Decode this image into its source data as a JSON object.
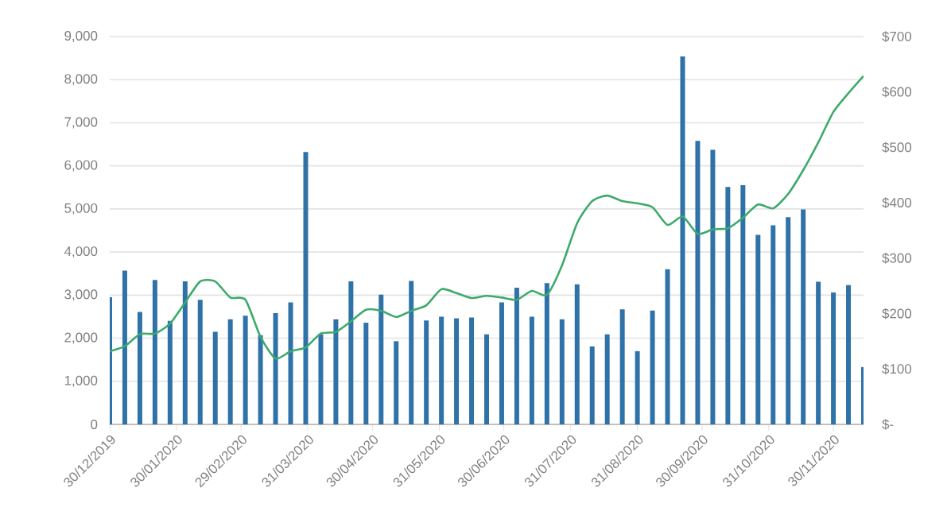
{
  "chart_data": {
    "type": "bar",
    "x": [
      "2019-12-30",
      "2020-01-06",
      "2020-01-13",
      "2020-01-20",
      "2020-01-27",
      "2020-02-03",
      "2020-02-10",
      "2020-02-17",
      "2020-02-24",
      "2020-03-02",
      "2020-03-09",
      "2020-03-16",
      "2020-03-23",
      "2020-03-30",
      "2020-04-06",
      "2020-04-13",
      "2020-04-20",
      "2020-04-27",
      "2020-05-04",
      "2020-05-11",
      "2020-05-18",
      "2020-05-25",
      "2020-06-01",
      "2020-06-08",
      "2020-06-15",
      "2020-06-22",
      "2020-06-29",
      "2020-07-06",
      "2020-07-13",
      "2020-07-20",
      "2020-07-27",
      "2020-08-03",
      "2020-08-10",
      "2020-08-17",
      "2020-08-24",
      "2020-08-31",
      "2020-09-07",
      "2020-09-14",
      "2020-09-21",
      "2020-09-28",
      "2020-10-05",
      "2020-10-12",
      "2020-10-19",
      "2020-10-26",
      "2020-11-02",
      "2020-11-09",
      "2020-11-16",
      "2020-11-23",
      "2020-11-30",
      "2020-12-07",
      "2020-12-14"
    ],
    "series": [
      {
        "color": "#2f72a8",
        "values": [
          2950,
          3570,
          2610,
          3350,
          2400,
          3320,
          2890,
          2150,
          2440,
          2520,
          2070,
          2580,
          2830,
          6320,
          2090,
          2440,
          3320,
          2360,
          3010,
          1930,
          3330,
          2410,
          2500,
          2460,
          2480,
          2090,
          2830,
          3170,
          2500,
          3280,
          2440,
          3250,
          1810,
          2090,
          2670,
          1700,
          2640,
          3600,
          8540,
          6580,
          6370,
          5510,
          5550,
          4400,
          4620,
          4810,
          4990,
          3310,
          3060,
          3230,
          1330
        ]
      },
      {
        "type": "line",
        "axis": "y2",
        "color": "#3daa6b",
        "values": [
          132,
          141,
          163,
          164,
          182,
          220,
          258,
          258,
          229,
          225,
          158,
          119,
          132,
          139,
          164,
          167,
          186,
          207,
          205,
          194,
          205,
          215,
          244,
          237,
          228,
          232,
          229,
          225,
          241,
          234,
          287,
          363,
          403,
          413,
          403,
          399,
          392,
          360,
          375,
          344,
          352,
          354,
          373,
          397,
          390,
          416,
          459,
          509,
          564,
          598,
          629
        ]
      }
    ],
    "xlim": [
      "2019-12-30",
      "2020-12-14"
    ],
    "xticks": [
      {
        "value": "2019-12-30",
        "label": "30/12/2019"
      },
      {
        "value": "2020-01-30",
        "label": "30/01/2020"
      },
      {
        "value": "2020-02-29",
        "label": "29/02/2020"
      },
      {
        "value": "2020-03-31",
        "label": "31/03/2020"
      },
      {
        "value": "2020-04-30",
        "label": "30/04/2020"
      },
      {
        "value": "2020-05-31",
        "label": "31/05/2020"
      },
      {
        "value": "2020-06-30",
        "label": "30/06/2020"
      },
      {
        "value": "2020-07-31",
        "label": "31/07/2020"
      },
      {
        "value": "2020-08-31",
        "label": "31/08/2020"
      },
      {
        "value": "2020-09-30",
        "label": "30/09/2020"
      },
      {
        "value": "2020-10-31",
        "label": "31/10/2020"
      },
      {
        "value": "2020-11-30",
        "label": "30/11/2020"
      }
    ],
    "ylim": [
      0,
      9000
    ],
    "yticks": [
      0,
      {
        "value": 1000,
        "label": "1,000"
      },
      {
        "value": 2000,
        "label": "2,000"
      },
      {
        "value": 3000,
        "label": "3,000"
      },
      {
        "value": 4000,
        "label": "4,000"
      },
      {
        "value": 5000,
        "label": "5,000"
      },
      {
        "value": 6000,
        "label": "6,000"
      },
      {
        "value": 7000,
        "label": "7,000"
      },
      {
        "value": 8000,
        "label": "8,000"
      },
      {
        "value": 9000,
        "label": "9,000"
      }
    ],
    "y2lim": [
      0,
      700
    ],
    "y2ticks": [
      {
        "value": 0,
        "label": "$-"
      },
      {
        "value": 100,
        "label": "$100"
      },
      {
        "value": 200,
        "label": "$200"
      },
      {
        "value": 300,
        "label": "$300"
      },
      {
        "value": 400,
        "label": "$400"
      },
      {
        "value": 500,
        "label": "$500"
      },
      {
        "value": 600,
        "label": "$600"
      },
      {
        "value": 700,
        "label": "$700"
      }
    ],
    "grid": "y"
  }
}
